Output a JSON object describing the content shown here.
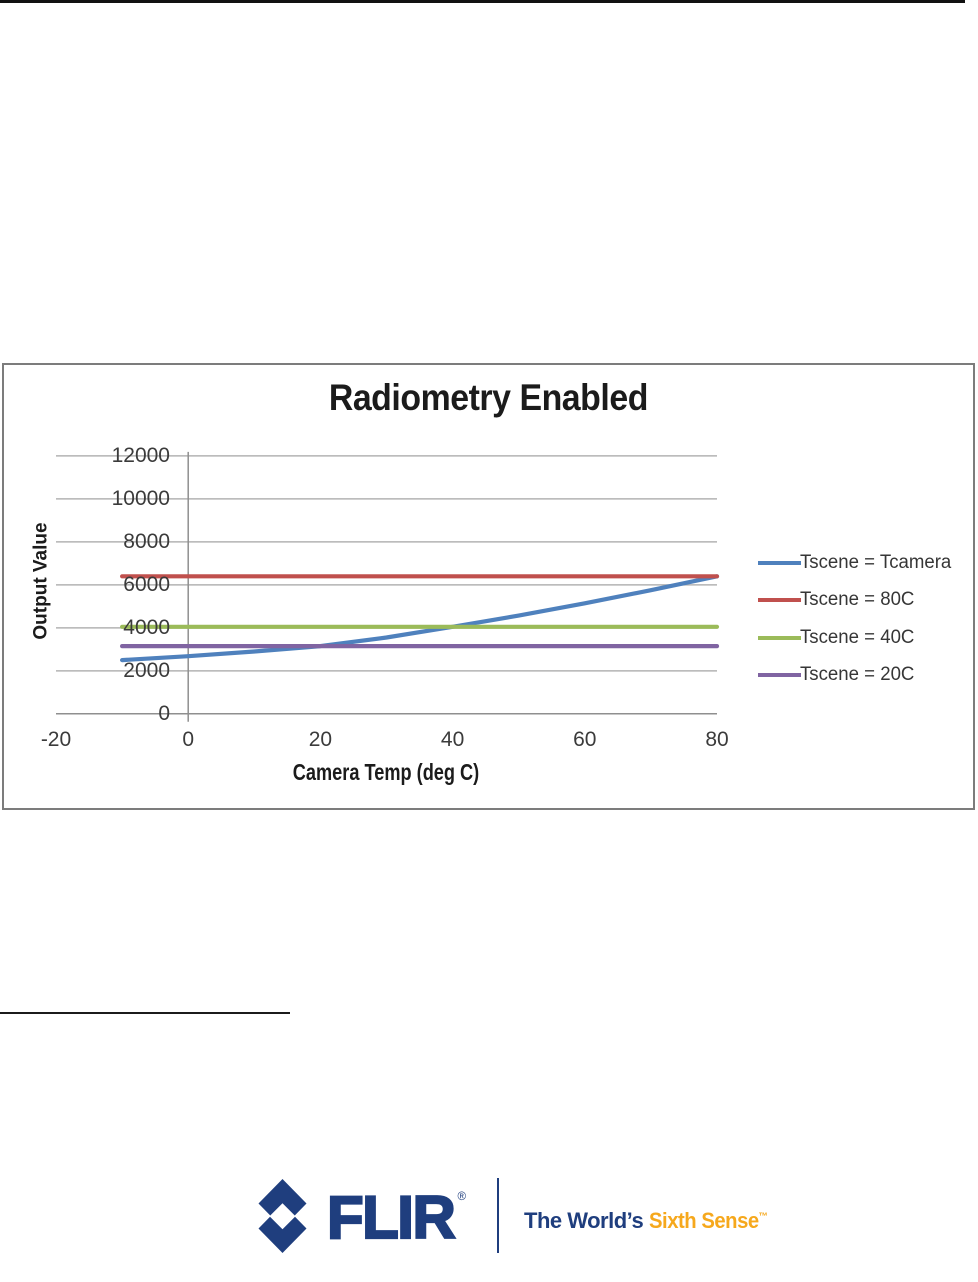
{
  "chart_data": {
    "type": "line",
    "title": "Radiometry Enabled",
    "xlabel": "Camera Temp (deg C)",
    "ylabel": "Output Value",
    "xlim": [
      -20,
      80
    ],
    "ylim": [
      0,
      12000
    ],
    "grid": "horizontal",
    "legend_position": "right",
    "xticks": [
      "-20",
      "0",
      "20",
      "40",
      "60",
      "80"
    ],
    "xtick_values": [
      -20,
      0,
      20,
      40,
      60,
      80
    ],
    "yticks": [
      "12000",
      "10000",
      "8000",
      "6000",
      "4000",
      "2000",
      "0"
    ],
    "ytick_values": [
      12000,
      10000,
      8000,
      6000,
      4000,
      2000,
      0
    ],
    "x": [
      -10,
      0,
      10,
      20,
      30,
      40,
      50,
      60,
      70,
      80
    ],
    "series": [
      {
        "name": "Tscene = Tcamera",
        "color": "#4F81BD",
        "values": [
          2500,
          2680,
          2900,
          3150,
          3550,
          4050,
          4570,
          5140,
          5750,
          6400
        ]
      },
      {
        "name": "Tscene = 80C",
        "color": "#C0504D",
        "values": [
          6400,
          6400,
          6400,
          6400,
          6400,
          6400,
          6400,
          6400,
          6400,
          6400
        ]
      },
      {
        "name": "Tscene = 40C",
        "color": "#9BBB59",
        "values": [
          4050,
          4050,
          4050,
          4050,
          4050,
          4050,
          4050,
          4050,
          4050,
          4050
        ]
      },
      {
        "name": "Tscene = 20C",
        "color": "#8064A2",
        "values": [
          3150,
          3150,
          3150,
          3150,
          3150,
          3150,
          3150,
          3150,
          3150,
          3150
        ]
      }
    ],
    "gridline_color": "#b3b3b3",
    "axis_line_color": "#8f8f8f"
  },
  "footer": {
    "logo_text": "FLIR",
    "registered_mark": "®",
    "tagline_prefix": "The World’s ",
    "tagline_highlight": "Sixth Sense",
    "trademark": "™",
    "brand_navy": "#1f3e7e",
    "brand_orange": "#f6a81c"
  }
}
